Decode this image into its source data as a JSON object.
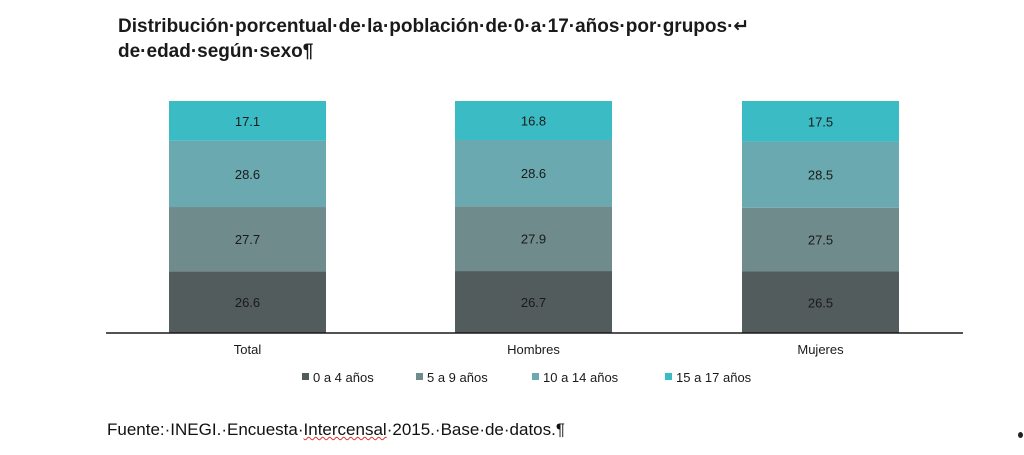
{
  "title_lines": [
    "Distribución·porcentual·de·la·población·de·0·a·17·años·por·grupos·↵",
    "de·edad·según·sexo¶"
  ],
  "source": {
    "prefix": "Fuente:·INEGI.·Encuesta·",
    "underlined": "Intercensal",
    "suffix": "·2015.·Base·de·datos.¶"
  },
  "chart_data": {
    "type": "bar",
    "stacked": true,
    "categories": [
      "Total",
      "Hombres",
      "Mujeres"
    ],
    "series": [
      {
        "name": "0 a 4 años",
        "color": "#525c5c",
        "values": [
          26.6,
          26.7,
          26.5
        ]
      },
      {
        "name": "5 a 9 años",
        "color": "#6f8b8b",
        "values": [
          27.7,
          27.9,
          27.5
        ]
      },
      {
        "name": "10 a 14 años",
        "color": "#6aa9af",
        "values": [
          28.6,
          28.6,
          28.5
        ]
      },
      {
        "name": "15 a 17 años",
        "color": "#3bbcc4",
        "values": [
          17.1,
          16.8,
          17.5
        ]
      }
    ],
    "ylim": [
      0,
      100
    ],
    "legend": "bottom",
    "grid": false,
    "data_labels": true
  }
}
